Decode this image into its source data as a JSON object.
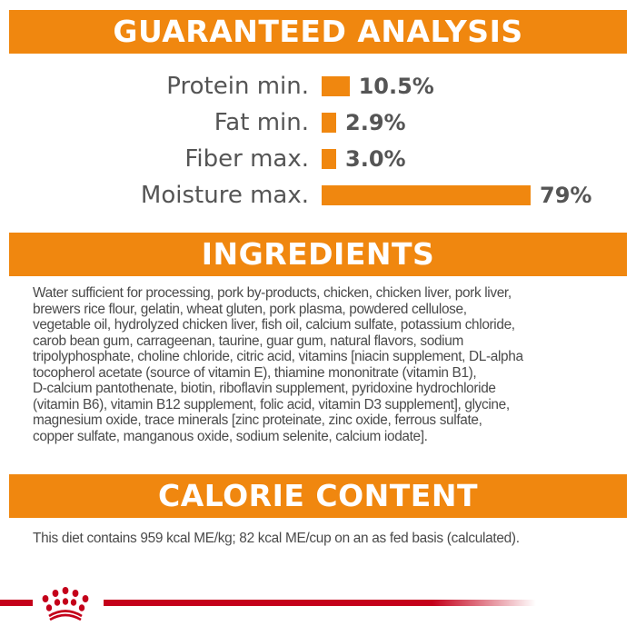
{
  "analysis": {
    "title": "GUARANTEED ANALYSIS",
    "bar_color": "#f0870f",
    "rows": [
      {
        "label": "Protein min.",
        "value": "10.5%",
        "percent": 10.5
      },
      {
        "label": "Fat min.",
        "value": "2.9%",
        "percent": 2.9
      },
      {
        "label": "Fiber max.",
        "value": "3.0%",
        "percent": 3.0
      },
      {
        "label": "Moisture max.",
        "value": "79%",
        "percent": 79
      }
    ]
  },
  "ingredients": {
    "title": "INGREDIENTS",
    "lines": [
      "Water sufficient for processing, pork by-products, chicken, chicken liver, pork liver,",
      "brewers rice flour, gelatin, wheat gluten, pork plasma, powdered cellulose,",
      "vegetable oil, hydrolyzed chicken liver, fish oil, calcium sulfate, potassium chloride,",
      "carob bean gum, carrageenan, taurine, guar gum, natural flavors, sodium",
      "tripolyphosphate, choline chloride, citric acid, vitamins [niacin supplement, DL-alpha",
      "tocopherol acetate (source of vitamin E), thiamine mononitrate (vitamin B1),",
      "D-calcium pantothenate, biotin, riboflavin supplement, pyridoxine hydrochloride",
      "(vitamin B6), vitamin B12 supplement, folic acid, vitamin D3 supplement], glycine,",
      "magnesium oxide, trace minerals [zinc proteinate, zinc oxide, ferrous sulfate,",
      "copper sulfate, manganous oxide, sodium selenite, calcium iodate]."
    ]
  },
  "calorie": {
    "title": "CALORIE CONTENT",
    "text": "This diet contains 959 kcal ME/kg; 82 kcal ME/cup on an as fed basis (calculated)."
  },
  "footer": {
    "logo": "royal-canin-crown",
    "brand_color": "#c4001a"
  }
}
